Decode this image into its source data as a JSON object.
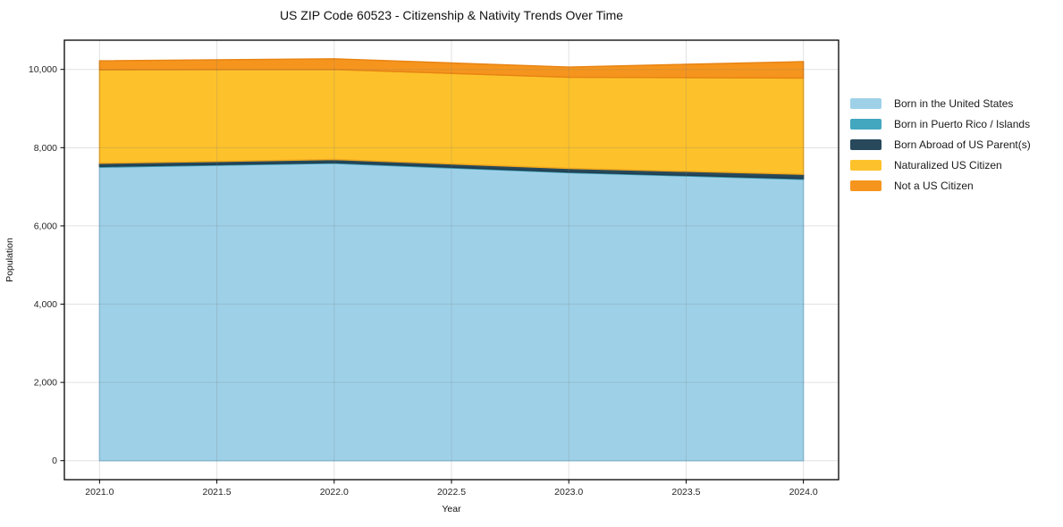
{
  "title": "US ZIP Code 60523 - Citizenship & Nativity Trends Over Time",
  "chart_data": {
    "type": "area",
    "stacked": true,
    "title": "US ZIP Code 60523 - Citizenship & Nativity Trends Over Time",
    "xlabel": "Year",
    "ylabel": "Population",
    "x": [
      2021,
      2022,
      2023,
      2024
    ],
    "series": [
      {
        "name": "Born in the United States",
        "values": [
          7500,
          7600,
          7360,
          7190
        ],
        "color": "#9ED1E8",
        "edge": "#8AC4DF"
      },
      {
        "name": "Born in Puerto Rico / Islands",
        "values": [
          20,
          20,
          20,
          20
        ],
        "color": "#43A7BF",
        "edge": "#3A98AF"
      },
      {
        "name": "Born Abroad of US Parent(s)",
        "values": [
          80,
          80,
          90,
          110
        ],
        "color": "#27495B",
        "edge": "#203E4E"
      },
      {
        "name": "Naturalized US Citizen",
        "values": [
          2390,
          2300,
          2330,
          2460
        ],
        "color": "#FDC22B",
        "edge": "#F0A81C"
      },
      {
        "name": "Not a US Citizen",
        "values": [
          230,
          270,
          260,
          420
        ],
        "color": "#F6951D",
        "edge": "#E88414"
      }
    ],
    "x_ticks": {
      "values": [
        2021.0,
        2021.5,
        2022.0,
        2022.5,
        2023.0,
        2023.5,
        2024.0
      ],
      "labels": [
        "2021.0",
        "2021.5",
        "2022.0",
        "2022.5",
        "2023.0",
        "2023.5",
        "2024.0"
      ]
    },
    "y_ticks": {
      "values": [
        0,
        2000,
        4000,
        6000,
        8000,
        10000
      ],
      "labels": [
        "0",
        "2,000",
        "4,000",
        "6,000",
        "8,000",
        "10,000"
      ]
    },
    "xlim": [
      2020.85,
      2024.15
    ],
    "ylim": [
      -486,
      10747
    ],
    "grid": true,
    "legend_position": "right",
    "colors": {
      "grid": "rgba(120,120,120,0.22)",
      "frame": "#000000",
      "tick_label": "#262626"
    }
  }
}
